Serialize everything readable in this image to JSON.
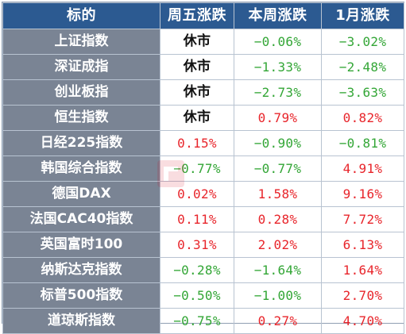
{
  "headers": [
    "标的",
    "周五涨跌",
    "本周涨跌",
    "1月涨跌"
  ],
  "rows": [
    {
      "name": "上证指数",
      "fri": "休市",
      "week": "-0.06%",
      "month": "-3.02%"
    },
    {
      "name": "深证成指",
      "fri": "休市",
      "week": "-1.33%",
      "month": "-2.48%"
    },
    {
      "name": "创业板指",
      "fri": "休市",
      "week": "-2.73%",
      "month": "-3.63%"
    },
    {
      "name": "恒生指数",
      "fri": "休市",
      "week": "0.79%",
      "month": "0.82%"
    },
    {
      "name": "日经225指数",
      "fri": "0.15%",
      "week": "-0.90%",
      "month": "-0.81%"
    },
    {
      "name": "韩国综合指数",
      "fri": "-0.77%",
      "week": "-0.77%",
      "month": "4.91%"
    },
    {
      "name": "德国DAX",
      "fri": "0.02%",
      "week": "1.58%",
      "month": "9.16%"
    },
    {
      "name": "法国CAC40指数",
      "fri": "0.11%",
      "week": "0.28%",
      "month": "7.72%"
    },
    {
      "name": "英国富时100",
      "fri": "0.31%",
      "week": "2.02%",
      "month": "6.13%"
    },
    {
      "name": "纳斯达克指数",
      "fri": "-0.28%",
      "week": "-1.64%",
      "month": "1.64%"
    },
    {
      "name": "标普500指数",
      "fri": "-0.50%",
      "week": "-1.00%",
      "month": "2.70%"
    },
    {
      "name": "道琼斯指数",
      "fri": "-0.75%",
      "week": "0.27%",
      "month": "4.70%"
    }
  ],
  "watermark": {
    "text": "财联社"
  },
  "colors": {
    "header_bg": "#2c5a91",
    "name_bg": "#7a8494",
    "up": "#e8252b",
    "down": "#33a636",
    "closed": "#111111"
  }
}
